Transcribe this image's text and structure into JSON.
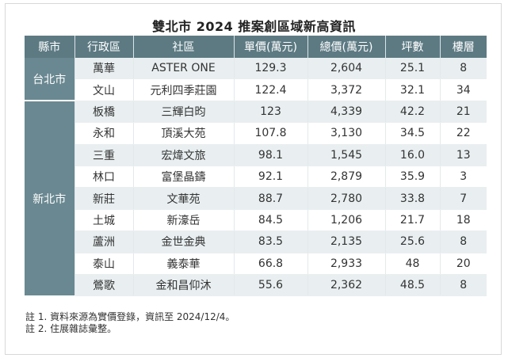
{
  "title": "雙北市 2024 推案創區域新高資訊",
  "columns": [
    "縣市",
    "行政區",
    "社區",
    "單價(萬元)",
    "總價(萬元)",
    "坪數",
    "樓層"
  ],
  "groups": [
    {
      "city": "台北市",
      "rows": [
        {
          "district": "萬華",
          "community": "ASTER ONE",
          "unit_price": "129.3",
          "total_price": "2,604",
          "ping": "25.1",
          "floor": "8"
        },
        {
          "district": "文山",
          "community": "元利四季莊園",
          "unit_price": "122.4",
          "total_price": "3,372",
          "ping": "32.1",
          "floor": "34"
        }
      ]
    },
    {
      "city": "新北市",
      "rows": [
        {
          "district": "板橋",
          "community": "三輝白昀",
          "unit_price": "123",
          "total_price": "4,339",
          "ping": "42.2",
          "floor": "21"
        },
        {
          "district": "永和",
          "community": "頂溪大苑",
          "unit_price": "107.8",
          "total_price": "3,130",
          "ping": "34.5",
          "floor": "22"
        },
        {
          "district": "三重",
          "community": "宏煒文旅",
          "unit_price": "98.1",
          "total_price": "1,545",
          "ping": "16.0",
          "floor": "13"
        },
        {
          "district": "林口",
          "community": "富堡晶鑄",
          "unit_price": "92.1",
          "total_price": "2,879",
          "ping": "35.9",
          "floor": "3"
        },
        {
          "district": "新莊",
          "community": "文華苑",
          "unit_price": "88.7",
          "total_price": "2,780",
          "ping": "33.8",
          "floor": "7"
        },
        {
          "district": "土城",
          "community": "新濠岳",
          "unit_price": "84.5",
          "total_price": "1,206",
          "ping": "21.7",
          "floor": "18"
        },
        {
          "district": "蘆洲",
          "community": "金世金典",
          "unit_price": "83.5",
          "total_price": "2,135",
          "ping": "25.6",
          "floor": "8"
        },
        {
          "district": "泰山",
          "community": "義泰華",
          "unit_price": "66.8",
          "total_price": "2,933",
          "ping": "48",
          "floor": "20"
        },
        {
          "district": "鶯歌",
          "community": "金和昌仰沐",
          "unit_price": "55.6",
          "total_price": "2,362",
          "ping": "48.5",
          "floor": "8"
        }
      ]
    }
  ],
  "notes": [
    "註 1. 資料來源為實價登錄，資訊至 2024/12/4。",
    "註 2. 住展雜誌彙整。"
  ],
  "colors": {
    "header": "#5d7a83",
    "city_cell": "#6a8891",
    "stripe": "#e9eff1"
  }
}
